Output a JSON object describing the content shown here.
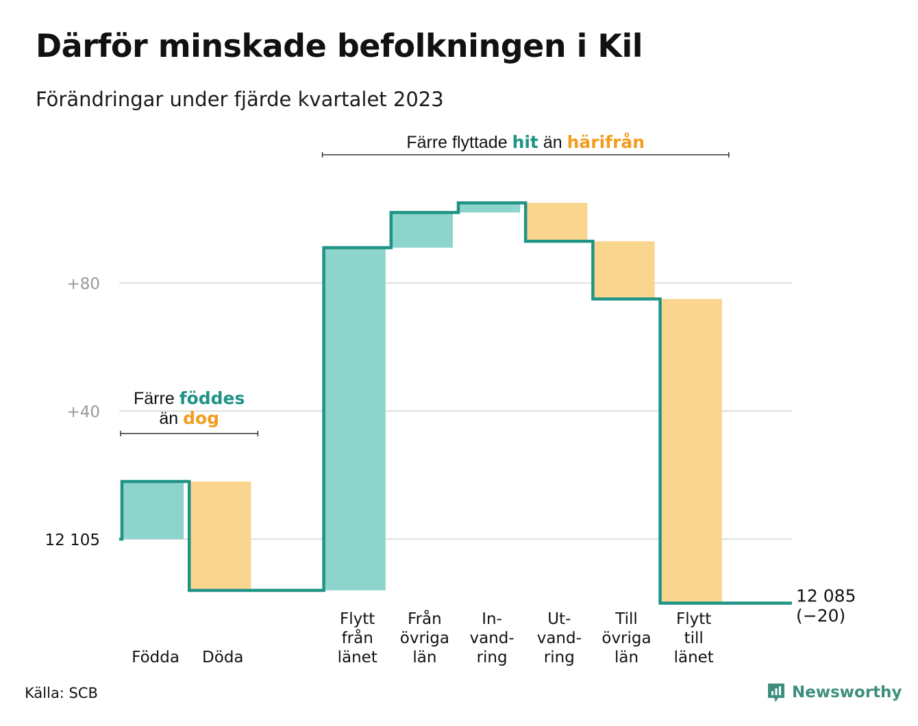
{
  "title": "Därför minskade befolkningen i Kil",
  "subtitle": "Förändringar under fjärde kvartalet 2023",
  "source": "Källa: SCB",
  "brand": {
    "name": "Newsworthy",
    "icon": "newsworthy-logo-icon"
  },
  "colors": {
    "increase": "#8dd4cc",
    "decrease": "#f9d58e",
    "line": "#1f9385",
    "grid": "#dddddd",
    "hit": "#1f9385",
    "harifran": "#f29d1f"
  },
  "chart_data": {
    "type": "waterfall",
    "start_value": 12105,
    "start_label": "12  105",
    "end_value": 12085,
    "end_label": "12 085",
    "end_change_label": "(−20)",
    "ylim": [
      -22,
      126
    ],
    "y_ticks": [
      {
        "value": 0,
        "label": "12  105"
      },
      {
        "value": 40,
        "label": "+40"
      },
      {
        "value": 80,
        "label": "+80"
      }
    ],
    "steps": [
      {
        "name": "Födda",
        "label_lines": [
          "Födda"
        ],
        "change": 18
      },
      {
        "name": "Döda",
        "label_lines": [
          "Döda"
        ],
        "change": -34
      },
      {
        "name": "",
        "label_lines": [],
        "change": 0
      },
      {
        "name": "Flytt från länet",
        "label_lines": [
          "Flytt",
          "från",
          "länet"
        ],
        "change": 107
      },
      {
        "name": "Från övriga län",
        "label_lines": [
          "Från",
          "övriga",
          "län"
        ],
        "change": 11
      },
      {
        "name": "In-vandring",
        "label_lines": [
          "In-",
          "vand-",
          "ring"
        ],
        "change": 3
      },
      {
        "name": "Ut-vandring",
        "label_lines": [
          "Ut-",
          "vand-",
          "ring"
        ],
        "change": -12
      },
      {
        "name": "Till övriga län",
        "label_lines": [
          "Till",
          "övriga",
          "län"
        ],
        "change": -18
      },
      {
        "name": "Flytt till länet",
        "label_lines": [
          "Flytt",
          "till",
          "länet"
        ],
        "change": -95
      },
      {
        "name": "",
        "label_lines": [],
        "change": 0
      }
    ],
    "annotations": {
      "births": {
        "prefix": "Färre",
        "highlight1": "föddes",
        "prefix2": "än",
        "highlight2": "dog",
        "from_step": 0,
        "to_step": 1
      },
      "migration": {
        "prefix": "Färre flyttade",
        "highlight1": "hit",
        "prefix2": "än",
        "highlight2": "härifrån",
        "from_step": 3,
        "to_step": 8
      }
    }
  }
}
